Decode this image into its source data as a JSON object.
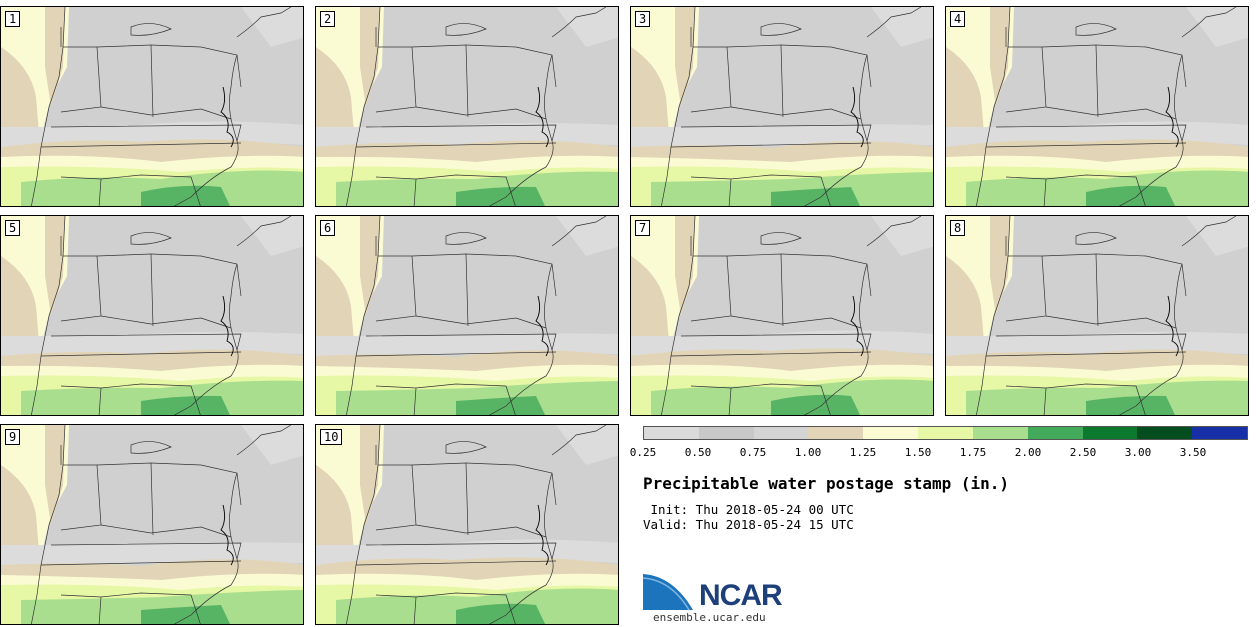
{
  "panels": [
    {
      "label": "1"
    },
    {
      "label": "2"
    },
    {
      "label": "3"
    },
    {
      "label": "4"
    },
    {
      "label": "5"
    },
    {
      "label": "6"
    },
    {
      "label": "7"
    },
    {
      "label": "8"
    },
    {
      "label": "9"
    },
    {
      "label": "10"
    }
  ],
  "colorbar": {
    "colors": [
      "#dadada",
      "#c8c8c8",
      "#d4d4d4",
      "#e2d5b7",
      "#fbfbd3",
      "#e6f7a5",
      "#a9de8e",
      "#43a95b",
      "#0b7a2f",
      "#044d1e",
      "#1730a8"
    ],
    "ticks": [
      "0.25",
      "0.50",
      "0.75",
      "1.00",
      "1.25",
      "1.50",
      "1.75",
      "2.00",
      "2.50",
      "3.00",
      "3.50"
    ]
  },
  "title": "Precipitable water postage stamp (in.)",
  "init": " Init: Thu 2018-05-24 00 UTC",
  "valid": "Valid: Thu 2018-05-24 15 UTC",
  "logo": {
    "text": "NCAR",
    "site": "ensemble.ucar.edu"
  },
  "map_colors": {
    "land_dry": "#d0d0d0",
    "land_light": "#dcdcdc",
    "tan": "#e2d5b7",
    "cream": "#fbfbd3",
    "lime": "#e6f7a5",
    "green": "#a9de8e",
    "dark_green": "#43a95b",
    "border": "#333333"
  }
}
